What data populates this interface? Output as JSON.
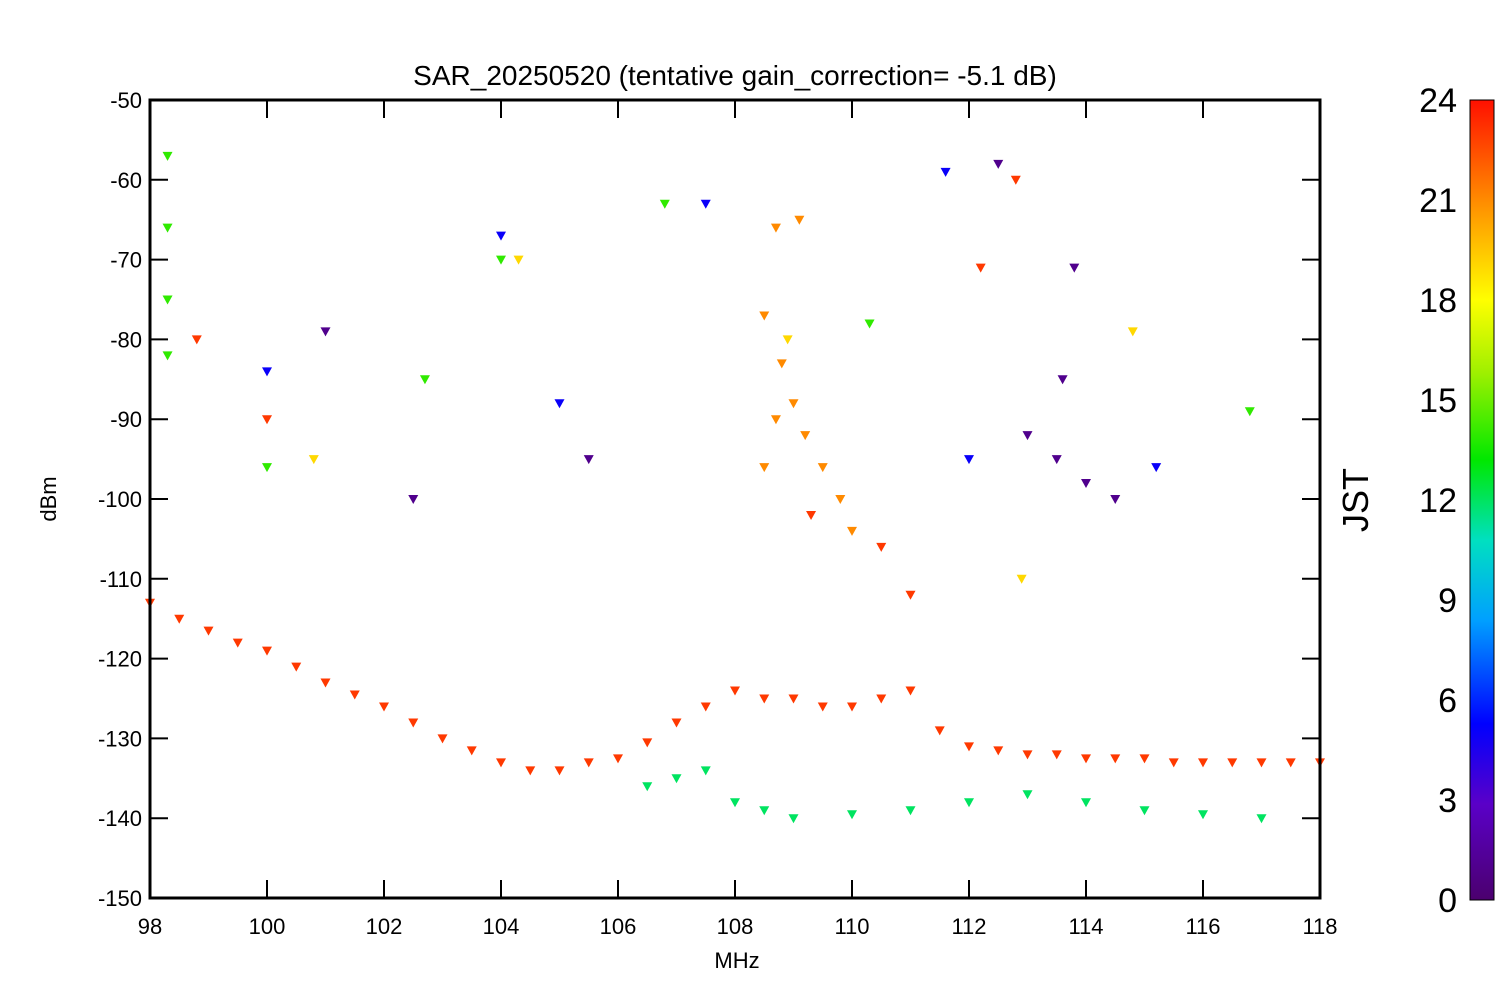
{
  "chart_data": {
    "type": "scatter",
    "title": "SAR_20250520 (tentative gain_correction= -5.1 dB)",
    "xlabel": "MHz",
    "ylabel": "dBm",
    "xlim": [
      98,
      118
    ],
    "ylim": [
      -150,
      -50
    ],
    "xticks": [
      "98",
      "100",
      "102",
      "104",
      "106",
      "108",
      "110",
      "112",
      "114",
      "116",
      "118"
    ],
    "yticks": [
      "-50",
      "-60",
      "-70",
      "-80",
      "-90",
      "-100",
      "-110",
      "-120",
      "-130",
      "-140",
      "-150"
    ],
    "grid": false,
    "colorbar": {
      "label": "JST",
      "range": [
        0,
        24
      ],
      "ticks": [
        "24",
        "21",
        "18",
        "15",
        "12",
        "9",
        "6",
        "3",
        "0"
      ],
      "colormap": "rainbow"
    },
    "colors": {
      "low": "#5a0078",
      "mid": "#00ee00",
      "high": "#ff2200"
    },
    "series": [
      {
        "color_value": 23,
        "points": [
          [
            98.0,
            -113
          ],
          [
            98.5,
            -115
          ],
          [
            99.0,
            -116.5
          ],
          [
            99.5,
            -118
          ],
          [
            100.0,
            -119
          ],
          [
            100.5,
            -121
          ],
          [
            101.0,
            -123
          ],
          [
            101.5,
            -124.5
          ],
          [
            102.0,
            -126
          ],
          [
            102.5,
            -128
          ],
          [
            103.0,
            -130
          ],
          [
            103.5,
            -131.5
          ],
          [
            104.0,
            -133
          ],
          [
            104.5,
            -134
          ],
          [
            105.0,
            -134
          ],
          [
            105.5,
            -133
          ],
          [
            106.0,
            -132.5
          ],
          [
            106.5,
            -130.5
          ],
          [
            107.0,
            -128
          ],
          [
            107.5,
            -126
          ],
          [
            108.0,
            -124
          ],
          [
            108.5,
            -125
          ],
          [
            109.0,
            -125
          ],
          [
            109.5,
            -126
          ],
          [
            110.0,
            -126
          ],
          [
            110.5,
            -125
          ],
          [
            111.0,
            -124
          ],
          [
            111.5,
            -129
          ],
          [
            112.0,
            -131
          ],
          [
            112.5,
            -131.5
          ],
          [
            113.0,
            -132
          ],
          [
            113.5,
            -132
          ],
          [
            114.0,
            -132.5
          ],
          [
            114.5,
            -132.5
          ],
          [
            115.0,
            -132.5
          ],
          [
            115.5,
            -133
          ],
          [
            116.0,
            -133
          ],
          [
            116.5,
            -133
          ],
          [
            117.0,
            -133
          ],
          [
            117.5,
            -133
          ],
          [
            118.0,
            -133
          ]
        ]
      },
      {
        "color_value": 12,
        "points": [
          [
            106.5,
            -136
          ],
          [
            107.0,
            -135
          ],
          [
            107.5,
            -134
          ],
          [
            108.0,
            -138
          ],
          [
            108.5,
            -139
          ],
          [
            109.0,
            -140
          ],
          [
            110.0,
            -139.5
          ],
          [
            111.0,
            -139
          ],
          [
            112.0,
            -138
          ],
          [
            113.0,
            -137
          ],
          [
            114.0,
            -138
          ],
          [
            115.0,
            -139
          ],
          [
            116.0,
            -139.5
          ],
          [
            117.0,
            -140
          ]
        ]
      },
      {
        "color_value": 21,
        "points": [
          [
            108.5,
            -77
          ],
          [
            108.8,
            -83
          ],
          [
            109.0,
            -88
          ],
          [
            109.2,
            -92
          ],
          [
            109.5,
            -96
          ],
          [
            109.8,
            -100
          ],
          [
            110.0,
            -104
          ],
          [
            108.5,
            -96
          ],
          [
            108.7,
            -90
          ],
          [
            109.1,
            -65
          ],
          [
            108.7,
            -66
          ]
        ]
      },
      {
        "color_value": 1,
        "points": [
          [
            112.5,
            -58
          ],
          [
            113.0,
            -92
          ],
          [
            113.5,
            -95
          ],
          [
            114.0,
            -98
          ],
          [
            114.5,
            -100
          ],
          [
            113.8,
            -71
          ],
          [
            113.6,
            -85
          ],
          [
            101.0,
            -79
          ],
          [
            102.5,
            -100
          ],
          [
            105.5,
            -95
          ]
        ]
      },
      {
        "color_value": 5,
        "points": [
          [
            111.6,
            -59
          ],
          [
            104.0,
            -67
          ],
          [
            100.0,
            -84
          ],
          [
            107.5,
            -63
          ],
          [
            105.0,
            -88
          ],
          [
            112.0,
            -95
          ],
          [
            115.2,
            -96
          ]
        ]
      },
      {
        "color_value": 14,
        "points": [
          [
            98.3,
            -57
          ],
          [
            98.3,
            -66
          ],
          [
            98.3,
            -75
          ],
          [
            98.3,
            -82
          ],
          [
            100.0,
            -96
          ],
          [
            104.0,
            -70
          ],
          [
            106.8,
            -63
          ],
          [
            102.7,
            -85
          ],
          [
            116.8,
            -89
          ],
          [
            110.3,
            -78
          ]
        ]
      },
      {
        "color_value": 19,
        "points": [
          [
            114.8,
            -79
          ],
          [
            100.8,
            -95
          ],
          [
            104.3,
            -70
          ],
          [
            108.9,
            -80
          ],
          [
            112.9,
            -110
          ]
        ]
      },
      {
        "color_value": 23,
        "points": [
          [
            112.8,
            -60
          ],
          [
            112.2,
            -71
          ],
          [
            98.8,
            -80
          ],
          [
            100.0,
            -90
          ],
          [
            109.3,
            -102
          ],
          [
            110.5,
            -106
          ],
          [
            111.0,
            -112
          ]
        ]
      }
    ]
  }
}
